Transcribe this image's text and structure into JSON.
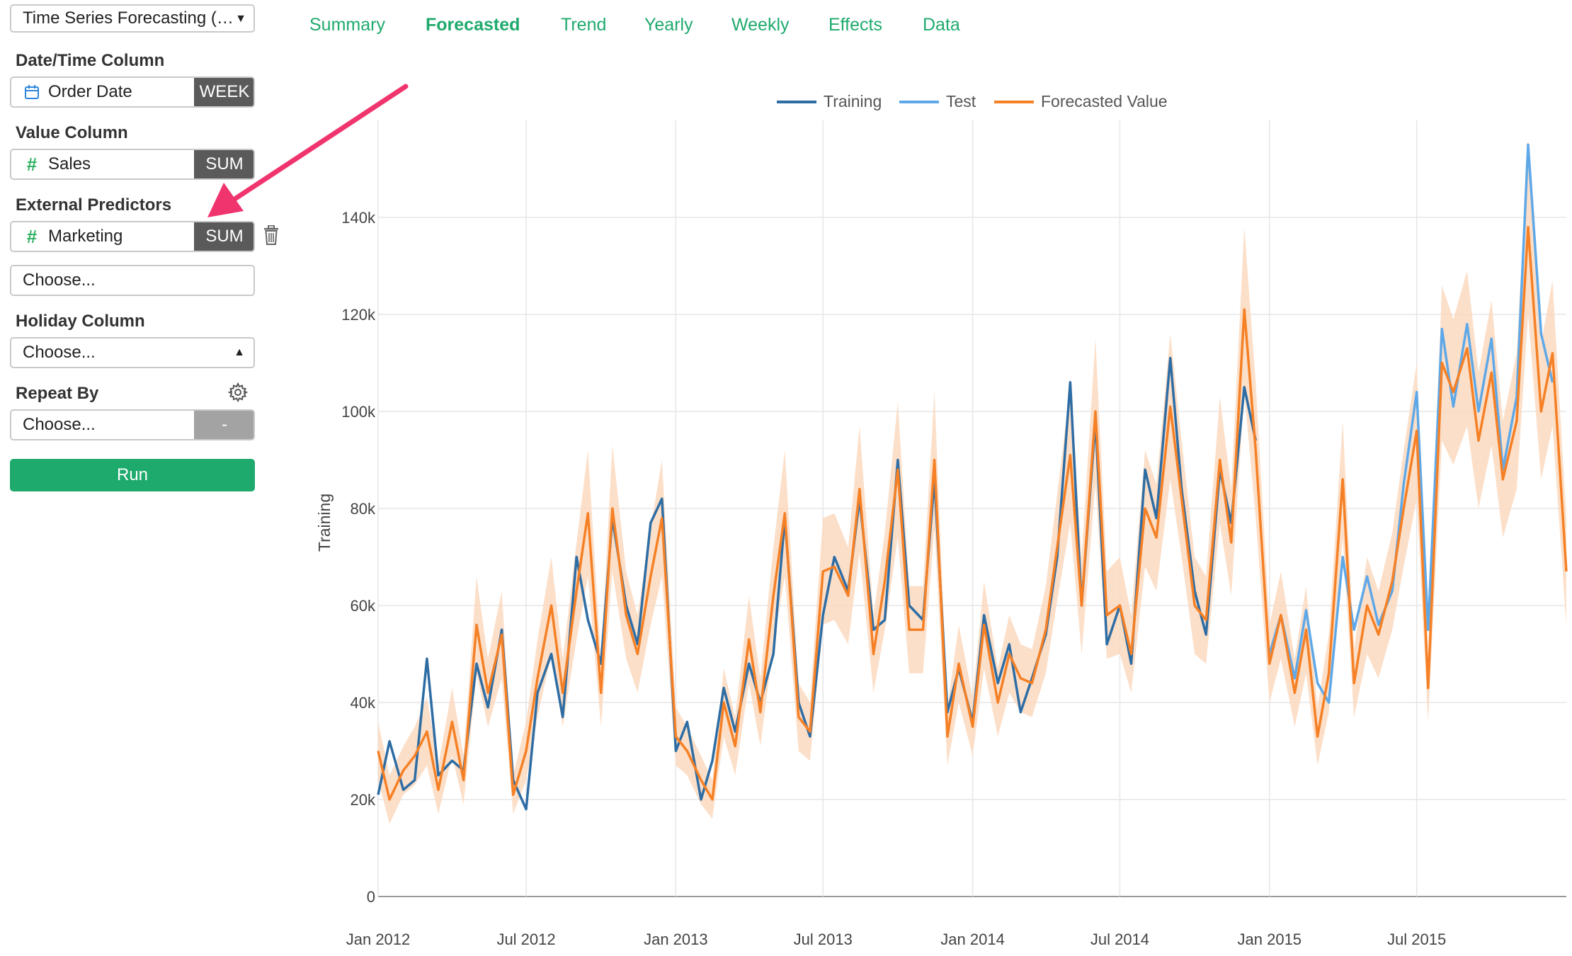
{
  "panel": {
    "analysis_select": "Time Series Forecasting (P...",
    "date_label": "Date/Time Column",
    "date_value": "Order Date",
    "date_unit": "WEEK",
    "value_label": "Value Column",
    "value_value": "Sales",
    "value_agg": "SUM",
    "ext_label": "External Predictors",
    "ext_value": "Marketing",
    "ext_agg": "SUM",
    "ext_choose": "Choose...",
    "holiday_label": "Holiday Column",
    "holiday_choose": "Choose...",
    "repeat_label": "Repeat By",
    "repeat_choose": "Choose...",
    "repeat_tag": "-",
    "run": "Run"
  },
  "tabs": [
    "Summary",
    "Forecasted",
    "Trend",
    "Yearly",
    "Weekly",
    "Effects",
    "Data"
  ],
  "active_tab": "Forecasted",
  "colors": {
    "accent": "#1faa6d",
    "training": "#2e6da4",
    "test": "#5fa8e8",
    "forecast": "#f58025",
    "band": "#fcd9bf",
    "arrow": "#f0356e"
  },
  "chart_data": {
    "type": "line",
    "ylabel": "Training",
    "ylim": [
      0,
      160000
    ],
    "yticks": [
      0,
      20000,
      40000,
      60000,
      80000,
      100000,
      120000,
      140000
    ],
    "ytick_labels": [
      "0",
      "20k",
      "40k",
      "60k",
      "80k",
      "100k",
      "120k",
      "140k"
    ],
    "xlim": [
      "2012-01-01",
      "2016-01-01"
    ],
    "xticks": [
      "2012-01-01",
      "2012-07-01",
      "2013-01-01",
      "2013-07-01",
      "2014-01-01",
      "2014-07-01",
      "2015-01-01",
      "2015-07-01"
    ],
    "xtick_labels": [
      "Jan 2012",
      "Jul 2012",
      "Jan 2013",
      "Jul 2013",
      "Jan 2014",
      "Jul 2014",
      "Jan 2015",
      "Jul 2015"
    ],
    "legend_position": "top-center",
    "grid": true,
    "series": [
      {
        "name": "Training",
        "x": [
          "2012-01-01",
          "2012-01-15",
          "2012-02-01",
          "2012-02-15",
          "2012-03-01",
          "2012-03-15",
          "2012-04-01",
          "2012-04-15",
          "2012-05-01",
          "2012-05-15",
          "2012-06-01",
          "2012-06-15",
          "2012-07-01",
          "2012-07-15",
          "2012-08-01",
          "2012-08-15",
          "2012-09-01",
          "2012-09-15",
          "2012-10-01",
          "2012-10-15",
          "2012-11-01",
          "2012-11-15",
          "2012-12-01",
          "2012-12-15",
          "2013-01-01",
          "2013-01-15",
          "2013-02-01",
          "2013-02-15",
          "2013-03-01",
          "2013-03-15",
          "2013-04-01",
          "2013-04-15",
          "2013-05-01",
          "2013-05-15",
          "2013-06-01",
          "2013-06-15",
          "2013-07-01",
          "2013-07-15",
          "2013-08-01",
          "2013-08-15",
          "2013-09-01",
          "2013-09-15",
          "2013-10-01",
          "2013-10-15",
          "2013-11-01",
          "2013-11-15",
          "2013-12-01",
          "2013-12-15",
          "2014-01-01",
          "2014-01-15",
          "2014-02-01",
          "2014-02-15",
          "2014-03-01",
          "2014-03-15",
          "2014-04-01",
          "2014-04-15",
          "2014-05-01",
          "2014-05-15",
          "2014-06-01",
          "2014-06-15",
          "2014-07-01",
          "2014-07-15",
          "2014-08-01",
          "2014-08-15",
          "2014-09-01",
          "2014-09-15",
          "2014-10-01",
          "2014-10-15",
          "2014-11-01",
          "2014-11-15",
          "2014-12-01",
          "2014-12-15"
        ],
        "values": [
          21000,
          32000,
          22000,
          24000,
          49000,
          25000,
          28000,
          26000,
          48000,
          39000,
          55000,
          24000,
          18000,
          42000,
          50000,
          37000,
          70000,
          57000,
          48000,
          78000,
          60000,
          52000,
          77000,
          82000,
          30000,
          36000,
          20000,
          28000,
          43000,
          34000,
          48000,
          40000,
          50000,
          78000,
          40000,
          33000,
          58000,
          70000,
          63000,
          82000,
          55000,
          57000,
          90000,
          60000,
          57000,
          86000,
          38000,
          47000,
          36000,
          58000,
          44000,
          52000,
          38000,
          45000,
          54000,
          70000,
          106000,
          60000,
          98000,
          52000,
          60000,
          48000,
          88000,
          78000,
          111000,
          84000,
          63000,
          54000,
          88000,
          77000,
          105000,
          94000
        ]
      },
      {
        "name": "Test",
        "x": [
          "2015-01-01",
          "2015-01-15",
          "2015-02-01",
          "2015-02-15",
          "2015-03-01",
          "2015-03-15",
          "2015-04-01",
          "2015-04-15",
          "2015-05-01",
          "2015-05-15",
          "2015-06-01",
          "2015-06-15",
          "2015-07-01",
          "2015-07-15",
          "2015-08-01",
          "2015-08-15",
          "2015-09-01",
          "2015-09-15",
          "2015-10-01",
          "2015-10-15",
          "2015-11-01",
          "2015-11-15",
          "2015-12-01",
          "2015-12-15"
        ],
        "values": [
          50000,
          58000,
          45000,
          59000,
          44000,
          40000,
          70000,
          55000,
          66000,
          56000,
          63000,
          85000,
          104000,
          55000,
          117000,
          101000,
          118000,
          100000,
          115000,
          88000,
          103000,
          155000,
          116000,
          106000
        ]
      },
      {
        "name": "Forecasted Value",
        "x": [
          "2012-01-01",
          "2012-01-15",
          "2012-02-01",
          "2012-02-15",
          "2012-03-01",
          "2012-03-15",
          "2012-04-01",
          "2012-04-15",
          "2012-05-01",
          "2012-05-15",
          "2012-06-01",
          "2012-06-15",
          "2012-07-01",
          "2012-07-15",
          "2012-08-01",
          "2012-08-15",
          "2012-09-01",
          "2012-09-15",
          "2012-10-01",
          "2012-10-15",
          "2012-11-01",
          "2012-11-15",
          "2012-12-01",
          "2012-12-15",
          "2013-01-01",
          "2013-01-15",
          "2013-02-01",
          "2013-02-15",
          "2013-03-01",
          "2013-03-15",
          "2013-04-01",
          "2013-04-15",
          "2013-05-01",
          "2013-05-15",
          "2013-06-01",
          "2013-06-15",
          "2013-07-01",
          "2013-07-15",
          "2013-08-01",
          "2013-08-15",
          "2013-09-01",
          "2013-09-15",
          "2013-10-01",
          "2013-10-15",
          "2013-11-01",
          "2013-11-15",
          "2013-12-01",
          "2013-12-15",
          "2014-01-01",
          "2014-01-15",
          "2014-02-01",
          "2014-02-15",
          "2014-03-01",
          "2014-03-15",
          "2014-04-01",
          "2014-04-15",
          "2014-05-01",
          "2014-05-15",
          "2014-06-01",
          "2014-06-15",
          "2014-07-01",
          "2014-07-15",
          "2014-08-01",
          "2014-08-15",
          "2014-09-01",
          "2014-09-15",
          "2014-10-01",
          "2014-10-15",
          "2014-11-01",
          "2014-11-15",
          "2014-12-01",
          "2014-12-15",
          "2015-01-01",
          "2015-01-15",
          "2015-02-01",
          "2015-02-15",
          "2015-03-01",
          "2015-03-15",
          "2015-04-01",
          "2015-04-15",
          "2015-05-01",
          "2015-05-15",
          "2015-06-01",
          "2015-06-15",
          "2015-07-01",
          "2015-07-15",
          "2015-08-01",
          "2015-08-15",
          "2015-09-01",
          "2015-09-15",
          "2015-10-01",
          "2015-10-15",
          "2015-11-01",
          "2015-11-15",
          "2015-12-01",
          "2015-12-15",
          "2016-01-01"
        ],
        "values": [
          30000,
          20000,
          26000,
          29000,
          34000,
          22000,
          36000,
          24000,
          56000,
          42000,
          54000,
          21000,
          30000,
          45000,
          60000,
          42000,
          63000,
          79000,
          42000,
          80000,
          58000,
          50000,
          66000,
          78000,
          33000,
          30000,
          24000,
          20000,
          40000,
          31000,
          53000,
          38000,
          62000,
          79000,
          37000,
          34000,
          67000,
          68000,
          62000,
          84000,
          50000,
          65000,
          88000,
          55000,
          55000,
          90000,
          33000,
          48000,
          35000,
          56000,
          40000,
          50000,
          45000,
          44000,
          55000,
          72000,
          91000,
          60000,
          100000,
          58000,
          60000,
          50000,
          80000,
          74000,
          101000,
          82000,
          60000,
          57000,
          90000,
          73000,
          121000,
          92000,
          48000,
          58000,
          42000,
          55000,
          33000,
          46000,
          86000,
          44000,
          60000,
          54000,
          65000,
          80000,
          96000,
          43000,
          110000,
          104000,
          113000,
          94000,
          108000,
          86000,
          98000,
          138000,
          100000,
          112000,
          67000
        ],
        "band_width": [
          6000,
          5000,
          5000,
          6000,
          7000,
          5000,
          7000,
          5000,
          10000,
          7000,
          9000,
          4000,
          6000,
          8000,
          10000,
          7000,
          10000,
          13000,
          7000,
          13000,
          9000,
          8000,
          10000,
          12000,
          6000,
          5000,
          5000,
          4000,
          7000,
          6000,
          9000,
          7000,
          10000,
          13000,
          7000,
          6000,
          11000,
          11000,
          10000,
          13000,
          8000,
          10000,
          14000,
          9000,
          9000,
          14000,
          6000,
          8000,
          6000,
          9000,
          7000,
          8000,
          7000,
          7000,
          9000,
          11000,
          14000,
          10000,
          15000,
          9000,
          10000,
          8000,
          12000,
          11000,
          15000,
          12000,
          10000,
          9000,
          13000,
          11000,
          17000,
          14000,
          8000,
          9000,
          7000,
          9000,
          6000,
          8000,
          12000,
          7000,
          10000,
          9000,
          10000,
          12000,
          14000,
          7000,
          16000,
          15000,
          16000,
          14000,
          15000,
          12000,
          14000,
          18000,
          14000,
          15000,
          11000
        ]
      }
    ]
  }
}
